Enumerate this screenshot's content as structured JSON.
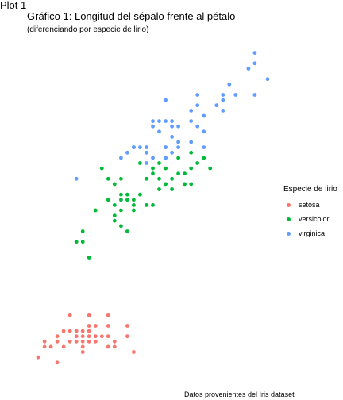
{
  "header": {
    "plot_label": "Plot 1"
  },
  "chart_data": {
    "type": "scatter",
    "title": "Gráfico 1: Longitud del sépalo frente al pétalo",
    "subtitle": "(diferenciando por especie de lirio)",
    "caption": "Datos provenientes del Iris dataset",
    "xlabel": "",
    "ylabel": "",
    "xlim": [
      4.2,
      8.0
    ],
    "ylim": [
      0.8,
      7.0
    ],
    "grid": false,
    "axes_visible": false,
    "legend": {
      "title": "Especie de lirio",
      "placement": "right"
    },
    "series": [
      {
        "name": "setosa",
        "color": "#F8766D",
        "points": [
          [
            4.3,
            1.1
          ],
          [
            4.4,
            1.3
          ],
          [
            4.4,
            1.4
          ],
          [
            4.5,
            1.3
          ],
          [
            4.6,
            1.0
          ],
          [
            4.6,
            1.4
          ],
          [
            4.6,
            1.5
          ],
          [
            4.7,
            1.3
          ],
          [
            4.7,
            1.6
          ],
          [
            4.8,
            1.4
          ],
          [
            4.8,
            1.6
          ],
          [
            4.8,
            1.9
          ],
          [
            4.9,
            1.4
          ],
          [
            4.9,
            1.5
          ],
          [
            5.0,
            1.2
          ],
          [
            5.0,
            1.4
          ],
          [
            5.0,
            1.5
          ],
          [
            5.0,
            1.6
          ],
          [
            5.1,
            1.4
          ],
          [
            5.1,
            1.5
          ],
          [
            5.1,
            1.7
          ],
          [
            5.1,
            1.9
          ],
          [
            5.2,
            1.4
          ],
          [
            5.2,
            1.5
          ],
          [
            5.3,
            1.5
          ],
          [
            5.4,
            1.3
          ],
          [
            5.4,
            1.5
          ],
          [
            5.4,
            1.7
          ],
          [
            5.5,
            1.3
          ],
          [
            5.5,
            1.4
          ],
          [
            5.7,
            1.5
          ],
          [
            5.7,
            1.7
          ],
          [
            5.8,
            1.2
          ],
          [
            5.1,
            1.6
          ],
          [
            4.9,
            1.6
          ],
          [
            5.2,
            1.7
          ],
          [
            5.0,
            1.3
          ],
          [
            5.4,
            1.9
          ]
        ]
      },
      {
        "name": "versicolor",
        "color": "#00BA38",
        "points": [
          [
            4.9,
            3.3
          ],
          [
            5.0,
            3.3
          ],
          [
            5.0,
            3.5
          ],
          [
            5.1,
            3.0
          ],
          [
            5.2,
            3.9
          ],
          [
            5.4,
            4.5
          ],
          [
            5.5,
            3.7
          ],
          [
            5.5,
            3.8
          ],
          [
            5.5,
            4.0
          ],
          [
            5.5,
            4.4
          ],
          [
            5.6,
            3.6
          ],
          [
            5.6,
            3.9
          ],
          [
            5.6,
            4.1
          ],
          [
            5.6,
            4.2
          ],
          [
            5.6,
            4.5
          ],
          [
            5.7,
            3.5
          ],
          [
            5.7,
            4.1
          ],
          [
            5.7,
            4.2
          ],
          [
            5.8,
            3.9
          ],
          [
            5.8,
            4.0
          ],
          [
            5.8,
            4.1
          ],
          [
            5.9,
            4.2
          ],
          [
            5.9,
            4.8
          ],
          [
            6.0,
            4.0
          ],
          [
            6.0,
            4.5
          ],
          [
            6.0,
            5.1
          ],
          [
            6.1,
            4.0
          ],
          [
            6.1,
            4.6
          ],
          [
            6.1,
            4.7
          ],
          [
            6.2,
            4.3
          ],
          [
            6.2,
            4.5
          ],
          [
            6.3,
            4.4
          ],
          [
            6.3,
            4.7
          ],
          [
            6.3,
            4.9
          ],
          [
            6.4,
            4.3
          ],
          [
            6.4,
            4.5
          ],
          [
            6.5,
            4.6
          ],
          [
            6.6,
            4.4
          ],
          [
            6.6,
            4.6
          ],
          [
            6.7,
            4.4
          ],
          [
            6.7,
            4.7
          ],
          [
            6.7,
            5.0
          ],
          [
            6.8,
            4.8
          ],
          [
            6.9,
            4.9
          ],
          [
            7.0,
            4.7
          ],
          [
            5.4,
            4.1
          ],
          [
            5.3,
            4.7
          ],
          [
            5.8,
            5.1
          ],
          [
            6.2,
            4.8
          ],
          [
            6.5,
            4.9
          ]
        ]
      },
      {
        "name": "virginica",
        "color": "#619CFF",
        "points": [
          [
            4.9,
            4.5
          ],
          [
            5.6,
            4.9
          ],
          [
            5.7,
            5.0
          ],
          [
            5.8,
            5.1
          ],
          [
            5.8,
            5.1
          ],
          [
            5.9,
            5.1
          ],
          [
            6.0,
            4.8
          ],
          [
            6.0,
            5.0
          ],
          [
            6.1,
            4.9
          ],
          [
            6.1,
            5.6
          ],
          [
            6.2,
            5.4
          ],
          [
            6.3,
            4.9
          ],
          [
            6.3,
            5.1
          ],
          [
            6.3,
            5.6
          ],
          [
            6.3,
            6.0
          ],
          [
            6.4,
            5.3
          ],
          [
            6.4,
            5.6
          ],
          [
            6.5,
            5.1
          ],
          [
            6.5,
            5.5
          ],
          [
            6.7,
            5.2
          ],
          [
            6.7,
            5.6
          ],
          [
            6.8,
            5.5
          ],
          [
            6.8,
            5.9
          ],
          [
            6.9,
            5.4
          ],
          [
            6.9,
            5.7
          ],
          [
            7.1,
            5.9
          ],
          [
            7.2,
            5.8
          ],
          [
            7.2,
            6.1
          ],
          [
            7.3,
            6.3
          ],
          [
            7.6,
            6.6
          ],
          [
            7.7,
            6.7
          ],
          [
            7.7,
            6.9
          ],
          [
            7.9,
            6.4
          ],
          [
            6.3,
            5.1
          ],
          [
            5.8,
            5.1
          ],
          [
            6.4,
            5.5
          ],
          [
            6.5,
            5.2
          ],
          [
            6.9,
            5.1
          ],
          [
            6.0,
            5.1
          ],
          [
            7.2,
            6.0
          ],
          [
            6.2,
            5.6
          ],
          [
            7.7,
            6.1
          ],
          [
            7.4,
            6.1
          ],
          [
            6.7,
            5.8
          ],
          [
            6.1,
            5.5
          ],
          [
            6.8,
            6.1
          ],
          [
            6.4,
            5.0
          ]
        ]
      }
    ]
  }
}
